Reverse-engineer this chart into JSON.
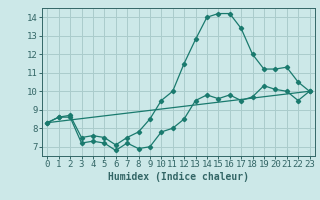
{
  "xlabel": "Humidex (Indice chaleur)",
  "bg_color": "#cce8e8",
  "line_color": "#1a7a6e",
  "grid_color": "#aacccc",
  "spine_color": "#336666",
  "tick_color": "#336666",
  "xlim": [
    -0.5,
    23.5
  ],
  "ylim": [
    6.5,
    14.5
  ],
  "xticks": [
    0,
    1,
    2,
    3,
    4,
    5,
    6,
    7,
    8,
    9,
    10,
    11,
    12,
    13,
    14,
    15,
    16,
    17,
    18,
    19,
    20,
    21,
    22,
    23
  ],
  "yticks": [
    7,
    8,
    9,
    10,
    11,
    12,
    13,
    14
  ],
  "line1_x": [
    0,
    1,
    2,
    3,
    4,
    5,
    6,
    7,
    8,
    9,
    10,
    11,
    12,
    13,
    14,
    15,
    16,
    17,
    18,
    19,
    20,
    21,
    22,
    23
  ],
  "line1_y": [
    8.3,
    8.6,
    8.6,
    7.2,
    7.3,
    7.2,
    6.8,
    7.2,
    6.9,
    7.0,
    7.8,
    8.0,
    8.5,
    9.5,
    9.8,
    9.6,
    9.8,
    9.5,
    9.7,
    10.3,
    10.1,
    10.0,
    9.5,
    10.0
  ],
  "line2_x": [
    0,
    1,
    2,
    3,
    4,
    5,
    6,
    7,
    8,
    9,
    10,
    11,
    12,
    13,
    14,
    15,
    16,
    17,
    18,
    19,
    20,
    21,
    22,
    23
  ],
  "line2_y": [
    8.3,
    8.6,
    8.7,
    7.5,
    7.6,
    7.5,
    7.1,
    7.5,
    7.8,
    8.5,
    9.5,
    10.0,
    11.5,
    12.8,
    14.0,
    14.2,
    14.2,
    13.4,
    12.0,
    11.2,
    11.2,
    11.3,
    10.5,
    10.0
  ],
  "line3_x": [
    0,
    23
  ],
  "line3_y": [
    8.3,
    10.0
  ]
}
